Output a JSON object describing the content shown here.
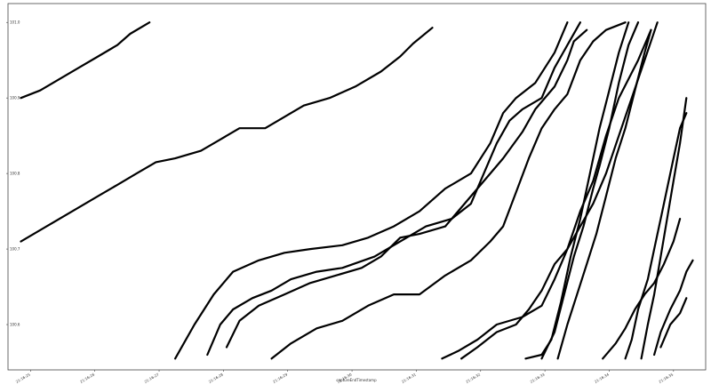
{
  "chart_data": {
    "type": "line",
    "title": "",
    "xlabel": "captureEndTimestamp",
    "ylabel": "",
    "x_tick_labels": [
      "21:16:25",
      "21:16:26",
      "21:16:27",
      "21:16:28",
      "21:16:29",
      "21:16:30",
      "21:16:31",
      "21:16:32",
      "21:16:33",
      "21:16:34",
      "21:16:35"
    ],
    "y_tick_labels": [
      "100.6",
      "100.7",
      "100.8",
      "100.9",
      "101.0"
    ],
    "x_range": [
      0,
      10.85
    ],
    "y_range": [
      100.54,
      101.025
    ],
    "grid": false,
    "line_color": "#000000",
    "series": [
      {
        "points": [
          [
            0.2,
            100.9
          ],
          [
            0.5,
            100.91
          ],
          [
            0.8,
            100.925
          ],
          [
            1.1,
            100.94
          ],
          [
            1.4,
            100.955
          ],
          [
            1.7,
            100.97
          ],
          [
            1.9,
            100.985
          ],
          [
            2.2,
            101.0
          ]
        ]
      },
      {
        "points": [
          [
            0.2,
            100.71
          ],
          [
            0.6,
            100.73
          ],
          [
            1.0,
            100.75
          ],
          [
            1.4,
            100.77
          ],
          [
            1.7,
            100.785
          ],
          [
            2.0,
            100.8
          ],
          [
            2.3,
            100.815
          ],
          [
            2.6,
            100.82
          ],
          [
            3.0,
            100.83
          ],
          [
            3.3,
            100.845
          ],
          [
            3.6,
            100.86
          ],
          [
            4.0,
            100.86
          ],
          [
            4.3,
            100.875
          ],
          [
            4.6,
            100.89
          ],
          [
            5.0,
            100.9
          ],
          [
            5.4,
            100.915
          ],
          [
            5.8,
            100.935
          ],
          [
            6.1,
            100.955
          ],
          [
            6.3,
            100.972
          ],
          [
            6.6,
            100.993
          ]
        ]
      },
      {
        "points": [
          [
            2.6,
            100.555
          ],
          [
            2.9,
            100.6
          ],
          [
            3.2,
            100.64
          ],
          [
            3.5,
            100.67
          ],
          [
            3.9,
            100.685
          ],
          [
            4.3,
            100.695
          ],
          [
            4.7,
            100.7
          ],
          [
            5.2,
            100.705
          ],
          [
            5.6,
            100.715
          ],
          [
            6.0,
            100.73
          ],
          [
            6.4,
            100.75
          ],
          [
            6.8,
            100.78
          ],
          [
            7.2,
            100.8
          ],
          [
            7.5,
            100.84
          ],
          [
            7.7,
            100.88
          ],
          [
            7.9,
            100.9
          ],
          [
            8.2,
            100.92
          ],
          [
            8.5,
            100.96
          ],
          [
            8.7,
            101.0
          ]
        ]
      },
      {
        "points": [
          [
            3.1,
            100.56
          ],
          [
            3.3,
            100.6
          ],
          [
            3.5,
            100.62
          ],
          [
            3.8,
            100.635
          ],
          [
            4.1,
            100.645
          ],
          [
            4.4,
            100.66
          ],
          [
            4.8,
            100.67
          ],
          [
            5.2,
            100.675
          ],
          [
            5.7,
            100.69
          ],
          [
            6.1,
            100.71
          ],
          [
            6.5,
            100.73
          ],
          [
            6.9,
            100.74
          ],
          [
            7.2,
            100.76
          ],
          [
            7.4,
            100.8
          ],
          [
            7.6,
            100.84
          ],
          [
            7.8,
            100.87
          ],
          [
            8.0,
            100.885
          ],
          [
            8.3,
            100.9
          ],
          [
            8.5,
            100.94
          ],
          [
            8.7,
            100.97
          ],
          [
            8.9,
            101.0
          ]
        ]
      },
      {
        "points": [
          [
            3.4,
            100.57
          ],
          [
            3.6,
            100.605
          ],
          [
            3.9,
            100.625
          ],
          [
            4.3,
            100.64
          ],
          [
            4.7,
            100.655
          ],
          [
            5.1,
            100.665
          ],
          [
            5.5,
            100.675
          ],
          [
            5.8,
            100.69
          ],
          [
            6.1,
            100.715
          ],
          [
            6.4,
            100.72
          ],
          [
            6.8,
            100.73
          ],
          [
            7.1,
            100.76
          ],
          [
            7.4,
            100.79
          ],
          [
            7.7,
            100.82
          ],
          [
            8.0,
            100.855
          ],
          [
            8.2,
            100.885
          ],
          [
            8.5,
            100.915
          ],
          [
            8.7,
            100.95
          ],
          [
            8.8,
            100.975
          ],
          [
            9.0,
            100.99
          ]
        ]
      },
      {
        "points": [
          [
            4.1,
            100.555
          ],
          [
            4.4,
            100.575
          ],
          [
            4.8,
            100.595
          ],
          [
            5.2,
            100.605
          ],
          [
            5.6,
            100.625
          ],
          [
            6.0,
            100.64
          ],
          [
            6.4,
            100.64
          ],
          [
            6.8,
            100.665
          ],
          [
            7.2,
            100.685
          ],
          [
            7.5,
            100.71
          ],
          [
            7.7,
            100.73
          ],
          [
            7.9,
            100.775
          ],
          [
            8.1,
            100.82
          ],
          [
            8.3,
            100.86
          ],
          [
            8.5,
            100.885
          ],
          [
            8.7,
            100.905
          ],
          [
            8.9,
            100.95
          ],
          [
            9.1,
            100.975
          ],
          [
            9.3,
            100.99
          ],
          [
            9.6,
            101.0
          ]
        ]
      },
      {
        "points": [
          [
            6.75,
            100.555
          ],
          [
            7.0,
            100.565
          ],
          [
            7.3,
            100.58
          ],
          [
            7.6,
            100.6
          ],
          [
            8.0,
            100.61
          ],
          [
            8.3,
            100.625
          ],
          [
            8.5,
            100.66
          ],
          [
            8.7,
            100.7
          ],
          [
            8.9,
            100.73
          ],
          [
            9.1,
            100.76
          ],
          [
            9.3,
            100.8
          ],
          [
            9.5,
            100.85
          ],
          [
            9.7,
            100.9
          ],
          [
            9.9,
            100.95
          ],
          [
            10.1,
            101.0
          ]
        ]
      },
      {
        "points": [
          [
            7.05,
            100.555
          ],
          [
            7.3,
            100.57
          ],
          [
            7.6,
            100.59
          ],
          [
            7.9,
            100.6
          ],
          [
            8.1,
            100.62
          ],
          [
            8.3,
            100.645
          ],
          [
            8.5,
            100.68
          ],
          [
            8.7,
            100.7
          ],
          [
            8.9,
            100.75
          ],
          [
            9.1,
            100.79
          ],
          [
            9.3,
            100.85
          ],
          [
            9.5,
            100.9
          ],
          [
            9.8,
            100.95
          ],
          [
            10.0,
            100.99
          ]
        ]
      },
      {
        "points": [
          [
            8.05,
            100.555
          ],
          [
            8.3,
            100.56
          ],
          [
            8.45,
            100.58
          ],
          [
            8.6,
            100.63
          ],
          [
            8.75,
            100.69
          ],
          [
            8.9,
            100.74
          ],
          [
            9.05,
            100.8
          ],
          [
            9.2,
            100.86
          ],
          [
            9.35,
            100.91
          ],
          [
            9.5,
            100.96
          ],
          [
            9.65,
            101.0
          ]
        ]
      },
      {
        "points": [
          [
            8.3,
            100.555
          ],
          [
            8.5,
            100.59
          ],
          [
            8.65,
            100.64
          ],
          [
            8.8,
            100.69
          ],
          [
            8.95,
            100.73
          ],
          [
            9.1,
            100.78
          ],
          [
            9.2,
            100.81
          ],
          [
            9.35,
            100.86
          ],
          [
            9.5,
            100.92
          ],
          [
            9.65,
            100.97
          ],
          [
            9.8,
            101.0
          ]
        ]
      },
      {
        "points": [
          [
            8.55,
            100.555
          ],
          [
            8.7,
            100.6
          ],
          [
            8.85,
            100.64
          ],
          [
            9.0,
            100.68
          ],
          [
            9.15,
            100.72
          ],
          [
            9.3,
            100.77
          ],
          [
            9.45,
            100.82
          ],
          [
            9.6,
            100.86
          ],
          [
            9.75,
            100.91
          ],
          [
            9.9,
            100.96
          ],
          [
            10.0,
            100.99
          ]
        ]
      },
      {
        "points": [
          [
            9.25,
            100.555
          ],
          [
            9.45,
            100.575
          ],
          [
            9.6,
            100.595
          ],
          [
            9.75,
            100.62
          ],
          [
            9.9,
            100.64
          ],
          [
            10.05,
            100.655
          ],
          [
            10.2,
            100.68
          ],
          [
            10.35,
            100.71
          ],
          [
            10.45,
            100.74
          ]
        ]
      },
      {
        "points": [
          [
            9.6,
            100.555
          ],
          [
            9.7,
            100.58
          ],
          [
            9.8,
            100.62
          ],
          [
            9.95,
            100.66
          ],
          [
            10.05,
            100.7
          ],
          [
            10.15,
            100.74
          ],
          [
            10.25,
            100.78
          ],
          [
            10.35,
            100.82
          ],
          [
            10.45,
            100.86
          ],
          [
            10.55,
            100.88
          ]
        ]
      },
      {
        "points": [
          [
            9.85,
            100.555
          ],
          [
            9.95,
            100.6
          ],
          [
            10.05,
            100.64
          ],
          [
            10.15,
            100.69
          ],
          [
            10.25,
            100.74
          ],
          [
            10.35,
            100.79
          ],
          [
            10.45,
            100.84
          ],
          [
            10.55,
            100.9
          ]
        ]
      },
      {
        "points": [
          [
            10.05,
            100.56
          ],
          [
            10.15,
            100.59
          ],
          [
            10.3,
            100.62
          ],
          [
            10.45,
            100.645
          ],
          [
            10.55,
            100.67
          ],
          [
            10.65,
            100.685
          ]
        ]
      },
      {
        "points": [
          [
            10.15,
            100.57
          ],
          [
            10.3,
            100.6
          ],
          [
            10.45,
            100.615
          ],
          [
            10.55,
            100.635
          ]
        ]
      }
    ]
  }
}
